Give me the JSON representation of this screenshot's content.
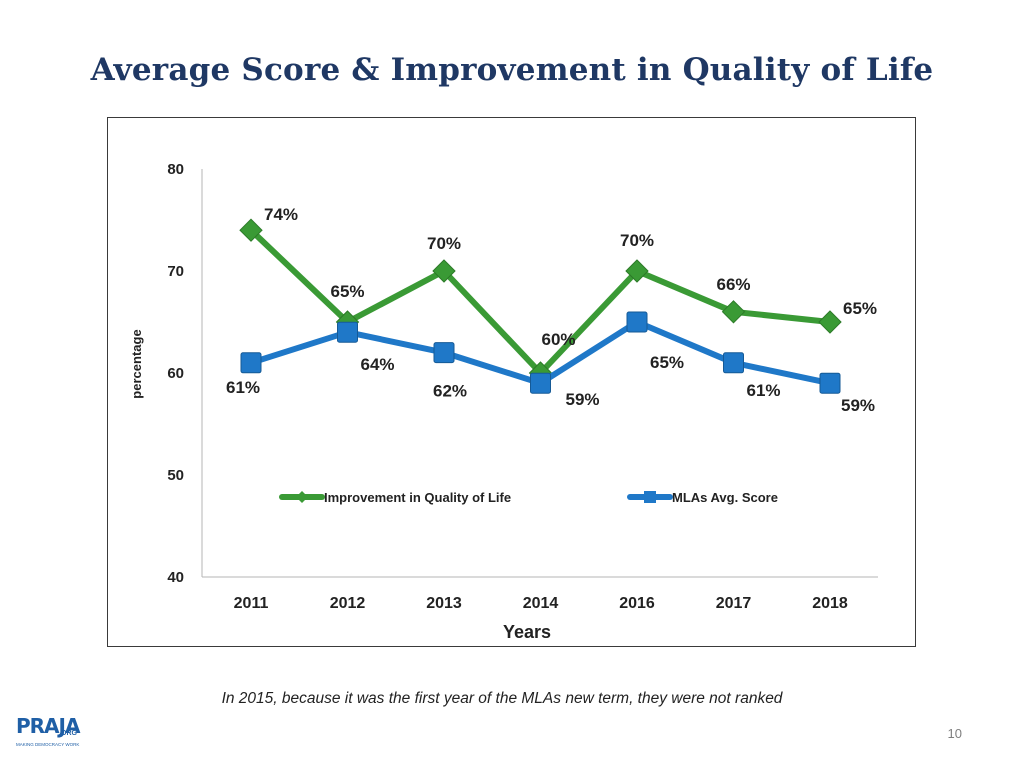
{
  "slide": {
    "title": "Average Score & Improvement in Quality of Life",
    "footnote": "In 2015, because it was the first year of the MLAs new term, they were not ranked",
    "page_number": "10",
    "logo": {
      "main": "PRAJA",
      "suffix": "ORG",
      "tagline": "MAKING DEMOCRACY WORK"
    }
  },
  "colors": {
    "title": "#1f3864",
    "green": "#3a9a35",
    "blue": "#1f78c8"
  },
  "chart_data": {
    "type": "line",
    "title": "",
    "xlabel": "Years",
    "ylabel": "percentage",
    "categories": [
      "2011",
      "2012",
      "2013",
      "2014",
      "2016",
      "2017",
      "2018"
    ],
    "ylim": [
      40,
      80
    ],
    "yticks": [
      40,
      50,
      60,
      70,
      80
    ],
    "legend": "inside-middle",
    "series": [
      {
        "name": "Improvement in Quality of Life",
        "marker": "diamond",
        "color": "#3a9a35",
        "values": [
          74,
          65,
          70,
          60,
          70,
          66,
          65
        ],
        "labels": [
          "74%",
          "65%",
          "70%",
          "60%",
          "70%",
          "66%",
          "65%"
        ]
      },
      {
        "name": "MLAs Avg. Score",
        "marker": "square",
        "color": "#1f78c8",
        "values": [
          61,
          64,
          62,
          59,
          65,
          61,
          59
        ],
        "labels": [
          "61%",
          "64%",
          "62%",
          "59%",
          "65%",
          "61%",
          "59%"
        ]
      }
    ]
  }
}
